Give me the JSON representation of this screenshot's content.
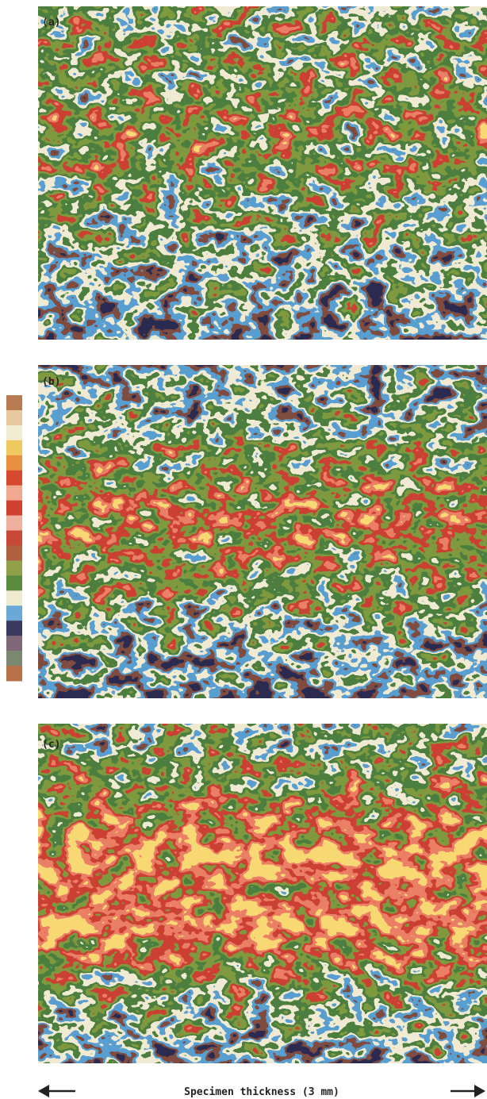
{
  "panels": [
    {
      "label": "(a)"
    },
    {
      "label": "(b)"
    },
    {
      "label": "(c)"
    }
  ],
  "caption": "Specimen thickness (3 mm)"
}
